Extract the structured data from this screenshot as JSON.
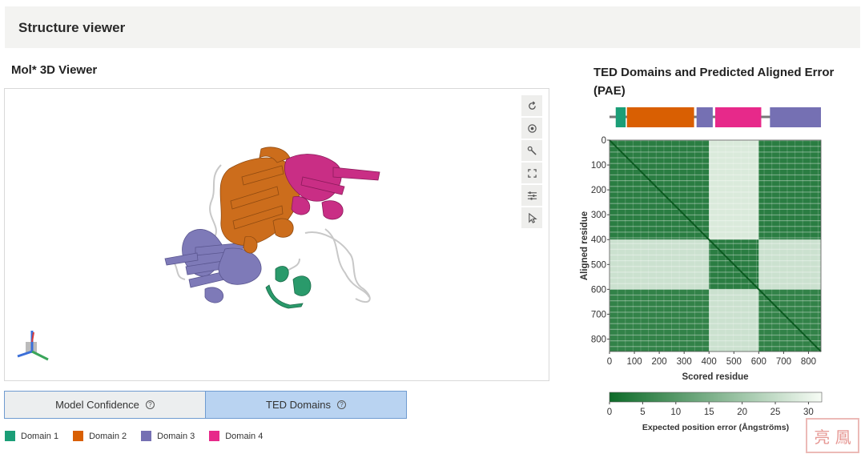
{
  "header": {
    "title": "Structure viewer"
  },
  "viewer": {
    "title": "Mol* 3D Viewer",
    "toolbar": [
      {
        "name": "reset-camera-icon"
      },
      {
        "name": "screenshot-icon"
      },
      {
        "name": "controls-icon"
      },
      {
        "name": "expand-icon"
      },
      {
        "name": "settings-icon"
      },
      {
        "name": "selection-mode-icon"
      }
    ]
  },
  "tabs": {
    "model_confidence": "Model Confidence",
    "ted_domains": "TED Domains",
    "help_symbol": "?"
  },
  "legend": [
    {
      "label": "Domain 1",
      "color": "#1b9e77"
    },
    {
      "label": "Domain 2",
      "color": "#d95f02"
    },
    {
      "label": "Domain 3",
      "color": "#7570b3"
    },
    {
      "label": "Domain 4",
      "color": "#e7298a"
    }
  ],
  "pae": {
    "title": "TED Domains and Predicted Aligned Error (PAE)",
    "domain_track": {
      "length": 850,
      "segments": [
        {
          "start": 25,
          "end": 65,
          "color": "#1b9e77"
        },
        {
          "start": 70,
          "end": 340,
          "color": "#d95f02"
        },
        {
          "start": 350,
          "end": 415,
          "color": "#7570b3"
        },
        {
          "start": 425,
          "end": 610,
          "color": "#e7298a"
        },
        {
          "start": 645,
          "end": 850,
          "color": "#7570b3"
        }
      ]
    }
  },
  "chart_data": {
    "type": "heatmap",
    "title": "Predicted Aligned Error",
    "xlabel": "Scored residue",
    "ylabel": "Aligned residue",
    "x_ticks": [
      0,
      100,
      200,
      300,
      400,
      500,
      600,
      700,
      800
    ],
    "y_ticks": [
      0,
      100,
      200,
      300,
      400,
      500,
      600,
      700,
      800
    ],
    "xlim": [
      0,
      850
    ],
    "ylim": [
      0,
      850
    ],
    "blocks": [
      {
        "rows": [
          0,
          400
        ],
        "cols": [
          0,
          400
        ],
        "value": 4
      },
      {
        "rows": [
          0,
          400
        ],
        "cols": [
          400,
          600
        ],
        "value": 28
      },
      {
        "rows": [
          0,
          400
        ],
        "cols": [
          600,
          850
        ],
        "value": 4
      },
      {
        "rows": [
          400,
          600
        ],
        "cols": [
          0,
          400
        ],
        "value": 26
      },
      {
        "rows": [
          400,
          600
        ],
        "cols": [
          400,
          600
        ],
        "value": 4
      },
      {
        "rows": [
          400,
          600
        ],
        "cols": [
          600,
          850
        ],
        "value": 26
      },
      {
        "rows": [
          600,
          850
        ],
        "cols": [
          0,
          400
        ],
        "value": 5
      },
      {
        "rows": [
          600,
          850
        ],
        "cols": [
          400,
          600
        ],
        "value": 26
      },
      {
        "rows": [
          600,
          850
        ],
        "cols": [
          600,
          850
        ],
        "value": 5
      }
    ],
    "colorbar": {
      "label": "Expected position error (Ångströms)",
      "ticks": [
        0,
        5,
        10,
        15,
        20,
        25,
        30
      ],
      "range": [
        0,
        32
      ],
      "low_color": "#0d6b28",
      "high_color": "#f7fcf5"
    }
  },
  "watermark": {
    "text": "亮 鳳"
  }
}
